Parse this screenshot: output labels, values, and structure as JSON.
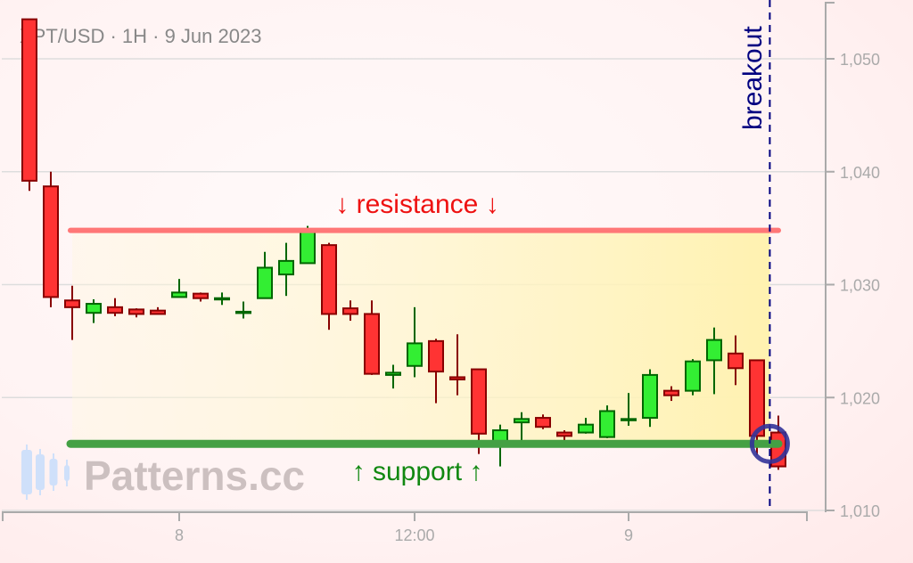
{
  "chart_data": {
    "type": "candlestick",
    "title": "XPT/USD · 1H · 9 Jun 2023",
    "watermark": "Patterns.cc",
    "ylim": [
      1010,
      1055
    ],
    "y_ticks": [
      1010,
      1020,
      1030,
      1040,
      1050
    ],
    "y_tick_labels": [
      "1,010",
      "1,020",
      "1,030",
      "1,040",
      "1,050"
    ],
    "x_ticks": [
      {
        "label": "8",
        "index": 7
      },
      {
        "label": "12:00",
        "index": 18
      },
      {
        "label": "9",
        "index": 28
      }
    ],
    "grid": "horizontal",
    "colors": {
      "up": "#33ee33",
      "up_edge": "#006600",
      "down": "#ff3333",
      "down_edge": "#880000",
      "resistance": "#ff7777",
      "support": "#44a044",
      "zone": "#fff2b0",
      "breakout": "#000080"
    },
    "candles": [
      [
        1053.5,
        1053.5,
        1038.3,
        1039.2
      ],
      [
        1038.7,
        1040.0,
        1028.0,
        1028.9
      ],
      [
        1028.6,
        1029.9,
        1025.1,
        1028.0
      ],
      [
        1027.5,
        1028.7,
        1026.6,
        1028.3
      ],
      [
        1028.0,
        1028.8,
        1027.2,
        1027.5
      ],
      [
        1027.8,
        1027.9,
        1027.1,
        1027.4
      ],
      [
        1027.7,
        1028.0,
        1027.4,
        1027.4
      ],
      [
        1028.9,
        1030.5,
        1028.9,
        1029.3
      ],
      [
        1029.2,
        1029.3,
        1028.5,
        1028.8
      ],
      [
        1028.7,
        1029.3,
        1028.2,
        1028.8
      ],
      [
        1027.5,
        1028.5,
        1027.0,
        1027.6
      ],
      [
        1028.8,
        1032.9,
        1028.8,
        1031.5
      ],
      [
        1030.9,
        1033.7,
        1029.0,
        1032.1
      ],
      [
        1031.9,
        1035.2,
        1031.9,
        1034.8
      ],
      [
        1033.5,
        1033.7,
        1026.0,
        1027.4
      ],
      [
        1027.9,
        1028.6,
        1026.8,
        1027.4
      ],
      [
        1027.4,
        1028.6,
        1022.0,
        1022.1
      ],
      [
        1022.0,
        1022.9,
        1020.8,
        1022.2
      ],
      [
        1022.8,
        1028.0,
        1021.8,
        1024.8
      ],
      [
        1025.0,
        1025.2,
        1019.5,
        1022.3
      ],
      [
        1021.8,
        1025.6,
        1020.2,
        1021.6
      ],
      [
        1022.5,
        1022.5,
        1015.0,
        1016.8
      ],
      [
        1015.8,
        1017.6,
        1013.9,
        1017.1
      ],
      [
        1017.8,
        1018.7,
        1016.1,
        1018.1
      ],
      [
        1018.2,
        1018.5,
        1017.2,
        1017.4
      ],
      [
        1016.9,
        1017.1,
        1016.2,
        1016.6
      ],
      [
        1016.9,
        1018.2,
        1016.8,
        1017.6
      ],
      [
        1016.5,
        1019.3,
        1016.4,
        1018.8
      ],
      [
        1018.0,
        1020.4,
        1017.5,
        1018.1
      ],
      [
        1018.2,
        1022.5,
        1017.4,
        1022.0
      ],
      [
        1020.6,
        1021.0,
        1019.7,
        1020.2
      ],
      [
        1020.6,
        1023.4,
        1020.2,
        1023.2
      ],
      [
        1023.3,
        1026.2,
        1020.3,
        1025.1
      ],
      [
        1023.9,
        1025.5,
        1021.1,
        1022.6
      ],
      [
        1023.3,
        1023.3,
        1014.9,
        1016.6
      ],
      [
        1016.9,
        1018.4,
        1013.6,
        1013.9
      ]
    ],
    "annotations": {
      "resistance": {
        "label": "↓ resistance ↓",
        "value": 1034.8,
        "from_index": 2,
        "to_index": 35
      },
      "support": {
        "label": "↑ support ↑",
        "value": 1015.9,
        "from_index": 2,
        "to_index": 35
      },
      "breakout": {
        "label": "breakout",
        "index": 34.6
      }
    }
  }
}
